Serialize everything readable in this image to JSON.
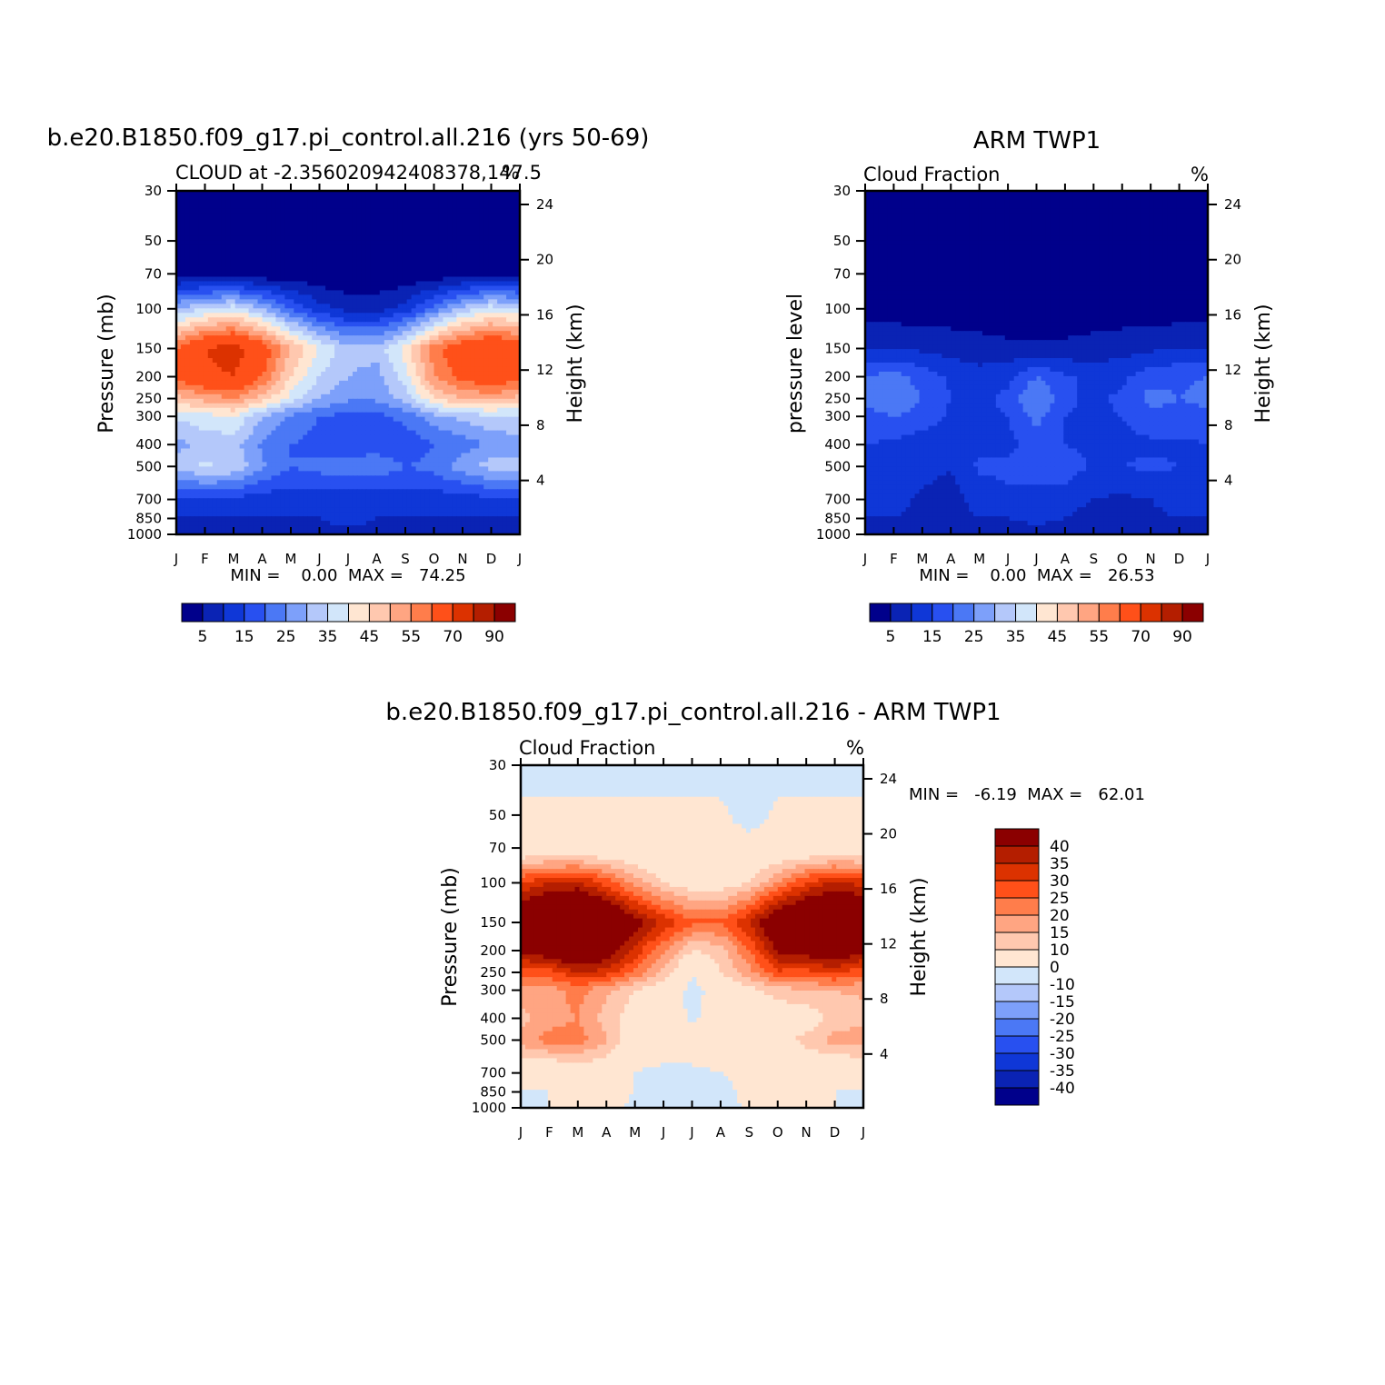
{
  "figure": {
    "panels": [
      {
        "title": "b.e20.B1850.f09_g17.pi_control.all.216 (yrs 50-69)",
        "subtitle_left": "CLOUD at -2.356020942408378,147.5",
        "subtitle_right": "%",
        "y_label_left": "Pressure (mb)",
        "y_label_right": "Height (km)",
        "stats": "MIN =    0.00  MAX =   74.25"
      },
      {
        "title": "ARM TWP1",
        "subtitle_left": "Cloud Fraction",
        "subtitle_right": "%",
        "y_label_left": "pressure level",
        "y_label_right": "Height (km)",
        "stats": "MIN =    0.00  MAX =   26.53"
      },
      {
        "title": "b.e20.B1850.f09_g17.pi_control.all.216 - ARM TWP1",
        "subtitle_left": "Cloud Fraction",
        "subtitle_right": "%",
        "y_label_left": "Pressure (mb)",
        "y_label_right": "Height (km)",
        "stats": "MIN =   -6.19  MAX =   62.01"
      }
    ],
    "pressure_ticks": [
      "30",
      "50",
      "70",
      "100",
      "150",
      "200",
      "250",
      "300",
      "400",
      "500",
      "700",
      "850",
      "1000"
    ],
    "height_ticks": [
      "24",
      "20",
      "16",
      "12",
      "8",
      "4"
    ],
    "month_ticks": [
      "J",
      "F",
      "M",
      "A",
      "M",
      "J",
      "J",
      "A",
      "S",
      "O",
      "N",
      "D",
      "J"
    ],
    "colorbar_cf": {
      "labels": [
        "5",
        "15",
        "25",
        "35",
        "45",
        "55",
        "70",
        "90"
      ],
      "colors": [
        "#00008b",
        "#0a23b4",
        "#0f37d7",
        "#2850f0",
        "#4b78f5",
        "#7da0fa",
        "#b4c8fa",
        "#d2e6fa",
        "#ffe6d2",
        "#ffc8af",
        "#ffa582",
        "#ff7d4b",
        "#ff5019",
        "#dc3200",
        "#b41e00",
        "#8b0000"
      ]
    },
    "colorbar_diff": {
      "labels": [
        "40",
        "35",
        "30",
        "25",
        "20",
        "15",
        "10",
        "0",
        "-10",
        "-15",
        "-20",
        "-25",
        "-30",
        "-35",
        "-40"
      ],
      "colors": [
        "#8b0000",
        "#b41e00",
        "#dc3200",
        "#ff5019",
        "#ff7d4b",
        "#ffa582",
        "#ffc8af",
        "#ffe6d2",
        "#d2e6fa",
        "#b4c8fa",
        "#7da0fa",
        "#4b78f5",
        "#2850f0",
        "#0f37d7",
        "#0a23b4",
        "#00008b"
      ]
    }
  },
  "chart_data": [
    {
      "type": "heatmap",
      "title": "b.e20.B1850.f09_g17.pi_control.all.216 (yrs 50-69)",
      "subtitle": "CLOUD at -2.356020942408378,147.5",
      "units": "%",
      "xlabel": "",
      "ylabel": "Pressure (mb)",
      "ylabel_right": "Height (km)",
      "x": [
        "J",
        "F",
        "M",
        "A",
        "M",
        "J",
        "J",
        "A",
        "S",
        "O",
        "N",
        "D",
        "J"
      ],
      "y_pressure_mb": [
        30,
        50,
        70,
        100,
        150,
        200,
        250,
        300,
        400,
        500,
        700,
        850,
        1000
      ],
      "levels": [
        5,
        10,
        15,
        20,
        25,
        30,
        35,
        40,
        45,
        50,
        55,
        60,
        70,
        80,
        90
      ],
      "min": 0.0,
      "max": 74.25,
      "z_approx": [
        [
          0,
          0,
          0,
          0,
          0,
          0,
          0,
          0,
          0,
          0,
          0,
          0,
          0
        ],
        [
          0,
          0,
          0,
          0,
          0,
          0,
          0,
          0,
          0,
          0,
          0,
          0,
          0
        ],
        [
          2,
          2,
          2,
          1,
          1,
          1,
          1,
          1,
          1,
          1,
          2,
          2,
          2
        ],
        [
          30,
          35,
          38,
          30,
          20,
          12,
          8,
          8,
          12,
          22,
          32,
          38,
          35
        ],
        [
          60,
          70,
          74,
          65,
          50,
          40,
          32,
          32,
          42,
          58,
          66,
          70,
          65
        ],
        [
          62,
          68,
          70,
          60,
          45,
          35,
          30,
          28,
          38,
          55,
          62,
          66,
          62
        ],
        [
          48,
          52,
          55,
          48,
          38,
          30,
          26,
          26,
          32,
          45,
          50,
          52,
          48
        ],
        [
          36,
          38,
          40,
          30,
          24,
          20,
          18,
          18,
          22,
          28,
          32,
          34,
          34
        ],
        [
          28,
          32,
          32,
          24,
          20,
          18,
          15,
          17,
          16,
          20,
          22,
          26,
          28
        ],
        [
          32,
          36,
          34,
          26,
          20,
          22,
          24,
          24,
          20,
          22,
          28,
          32,
          32
        ],
        [
          14,
          14,
          14,
          12,
          12,
          12,
          12,
          12,
          12,
          12,
          12,
          14,
          14
        ],
        [
          10,
          10,
          10,
          10,
          10,
          10,
          14,
          10,
          10,
          10,
          10,
          10,
          10
        ],
        [
          6,
          6,
          6,
          6,
          6,
          6,
          6,
          6,
          6,
          6,
          6,
          6,
          6
        ]
      ]
    },
    {
      "type": "heatmap",
      "title": "ARM TWP1",
      "subtitle": "Cloud Fraction",
      "units": "%",
      "xlabel": "",
      "ylabel": "pressure level",
      "ylabel_right": "Height (km)",
      "x": [
        "J",
        "F",
        "M",
        "A",
        "M",
        "J",
        "J",
        "A",
        "S",
        "O",
        "N",
        "D",
        "J"
      ],
      "y_pressure_mb": [
        30,
        50,
        70,
        100,
        150,
        200,
        250,
        300,
        400,
        500,
        700,
        850,
        1000
      ],
      "levels": [
        5,
        10,
        15,
        20,
        25,
        30,
        35,
        40,
        45,
        50,
        55,
        60,
        70,
        80,
        90
      ],
      "min": 0.0,
      "max": 26.53,
      "z_approx": [
        [
          0,
          0,
          0,
          0,
          0,
          0,
          0,
          0,
          0,
          0,
          0,
          0,
          0
        ],
        [
          0,
          0,
          0,
          0,
          0,
          0,
          0,
          0,
          0,
          0,
          0,
          0,
          0
        ],
        [
          0,
          0,
          0,
          0,
          0,
          0,
          0,
          0,
          0,
          0,
          0,
          0,
          0
        ],
        [
          2,
          2,
          2,
          2,
          2,
          2,
          2,
          2,
          2,
          2,
          2,
          2,
          2
        ],
        [
          10,
          10,
          9,
          8,
          7,
          6,
          6,
          6,
          7,
          8,
          9,
          10,
          10
        ],
        [
          20,
          22,
          18,
          14,
          12,
          14,
          20,
          16,
          13,
          14,
          18,
          19,
          20
        ],
        [
          22,
          24,
          20,
          15,
          14,
          16,
          26,
          16,
          14,
          16,
          22,
          20,
          22
        ],
        [
          18,
          20,
          18,
          14,
          14,
          15,
          22,
          15,
          14,
          15,
          18,
          18,
          18
        ],
        [
          15,
          14,
          12,
          11,
          14,
          14,
          16,
          15,
          14,
          14,
          14,
          14,
          15
        ],
        [
          14,
          14,
          12,
          10,
          16,
          16,
          18,
          18,
          14,
          15,
          16,
          15,
          14
        ],
        [
          12,
          12,
          9,
          8,
          12,
          14,
          12,
          12,
          10,
          9,
          10,
          12,
          12
        ],
        [
          10,
          10,
          8,
          8,
          10,
          10,
          12,
          10,
          8,
          8,
          9,
          10,
          10
        ],
        [
          7,
          7,
          7,
          7,
          7,
          7,
          7,
          7,
          7,
          7,
          7,
          7,
          7
        ]
      ]
    },
    {
      "type": "heatmap",
      "title": "b.e20.B1850.f09_g17.pi_control.all.216 - ARM TWP1",
      "subtitle": "Cloud Fraction",
      "units": "%",
      "xlabel": "",
      "ylabel": "Pressure (mb)",
      "ylabel_right": "Height (km)",
      "x": [
        "J",
        "F",
        "M",
        "A",
        "M",
        "J",
        "J",
        "A",
        "S",
        "O",
        "N",
        "D",
        "J"
      ],
      "y_pressure_mb": [
        30,
        50,
        70,
        100,
        150,
        200,
        250,
        300,
        400,
        500,
        700,
        850,
        1000
      ],
      "levels": [
        -40,
        -35,
        -30,
        -25,
        -20,
        -15,
        -10,
        0,
        10,
        15,
        20,
        25,
        30,
        35,
        40
      ],
      "min": -6.19,
      "max": 62.01,
      "z_approx": [
        [
          -2,
          -2,
          -2,
          -2,
          -2,
          -2,
          -2,
          -2,
          -2,
          -2,
          -2,
          -2,
          -2
        ],
        [
          1,
          1,
          1,
          1,
          1,
          1,
          1,
          1,
          -2,
          1,
          1,
          1,
          1
        ],
        [
          2,
          2,
          2,
          2,
          2,
          2,
          2,
          2,
          2,
          2,
          2,
          2,
          2
        ],
        [
          30,
          35,
          36,
          28,
          18,
          10,
          6,
          6,
          10,
          20,
          30,
          36,
          33
        ],
        [
          50,
          60,
          62,
          55,
          43,
          34,
          26,
          26,
          35,
          50,
          57,
          60,
          55
        ],
        [
          42,
          46,
          52,
          46,
          33,
          21,
          10,
          12,
          25,
          41,
          44,
          47,
          42
        ],
        [
          26,
          28,
          35,
          33,
          24,
          14,
          0,
          10,
          18,
          29,
          28,
          32,
          26
        ],
        [
          18,
          18,
          22,
          16,
          10,
          5,
          -2,
          3,
          8,
          13,
          14,
          15,
          16
        ],
        [
          13,
          18,
          20,
          13,
          6,
          4,
          -1,
          2,
          2,
          5,
          6,
          12,
          13
        ],
        [
          18,
          22,
          22,
          16,
          4,
          6,
          6,
          6,
          6,
          7,
          12,
          17,
          18
        ],
        [
          2,
          2,
          5,
          4,
          0,
          -2,
          -2,
          0,
          2,
          3,
          2,
          2,
          2
        ],
        [
          0,
          0,
          2,
          2,
          0,
          -2,
          -4,
          -2,
          2,
          2,
          1,
          0,
          0
        ],
        [
          -1,
          0,
          1,
          1,
          -1,
          -1,
          -1,
          -1,
          0,
          0,
          0,
          0,
          -1
        ]
      ]
    }
  ]
}
